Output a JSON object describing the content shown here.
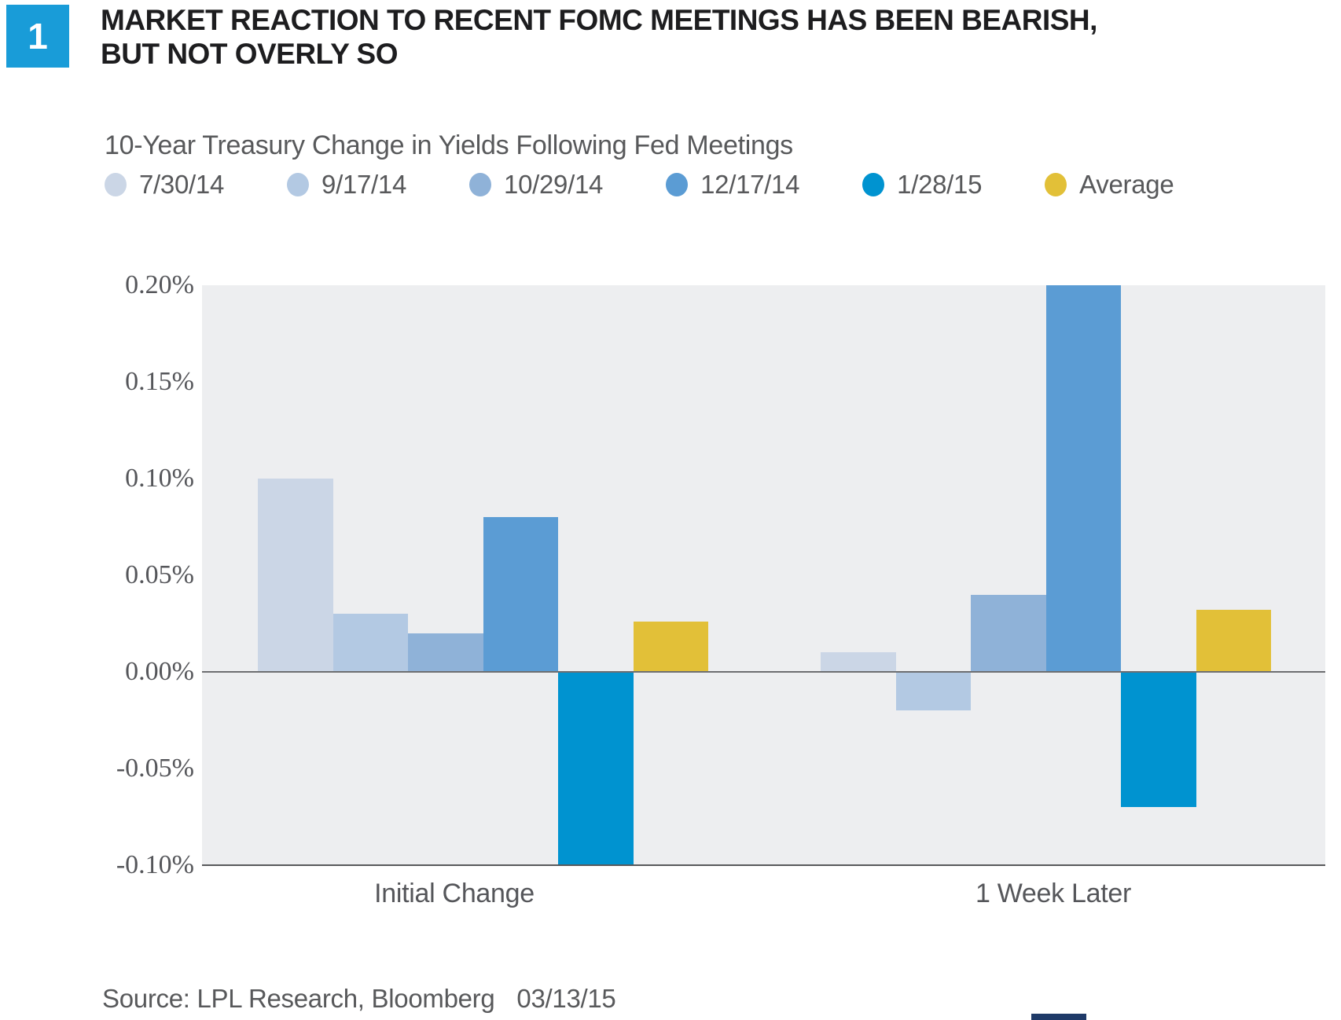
{
  "badge": {
    "number": "1"
  },
  "title": {
    "line1": "MARKET REACTION TO RECENT FOMC MEETINGS HAS BEEN BEARISH,",
    "line2": "BUT NOT OVERLY SO"
  },
  "chart_data": {
    "type": "bar",
    "title": "10-Year Treasury Change in Yields Following Fed Meetings",
    "categories": [
      "Initial Change",
      "1 Week Later"
    ],
    "series": [
      {
        "name": "7/30/14",
        "color": "#cbd6e6",
        "values": [
          0.1,
          0.01
        ]
      },
      {
        "name": "9/17/14",
        "color": "#b3c9e3",
        "values": [
          0.03,
          -0.02
        ]
      },
      {
        "name": "10/29/14",
        "color": "#8fb2d8",
        "values": [
          0.02,
          0.04
        ]
      },
      {
        "name": "12/17/14",
        "color": "#5b9cd4",
        "values": [
          0.08,
          0.2
        ]
      },
      {
        "name": "1/28/15",
        "color": "#0093d0",
        "values": [
          -0.1,
          -0.07
        ]
      },
      {
        "name": "Average",
        "color": "#e2c038",
        "values": [
          0.026,
          0.032
        ]
      }
    ],
    "ylim": [
      -0.1,
      0.2
    ],
    "yticks": [
      "0.20%",
      "0.15%",
      "0.10%",
      "0.05%",
      "0.00%",
      "-0.05%",
      "-0.10%"
    ],
    "ytick_values": [
      0.2,
      0.15,
      0.1,
      0.05,
      0.0,
      -0.05,
      -0.1
    ],
    "unit": "percent",
    "grid": false,
    "legend_position": "top",
    "plot_background": "#edeef0",
    "zero_line_color": "#6d6e71",
    "axis_line_color": "#58595b"
  },
  "footer": {
    "source": "Source: LPL Research, Bloomberg",
    "date": "03/13/15"
  },
  "colors": {
    "badge_blue": "#199cd8",
    "title_text": "#1d1d1f",
    "label_gray": "#58595b",
    "navy_chip": "#1f3a68",
    "background": "#ffffff"
  }
}
